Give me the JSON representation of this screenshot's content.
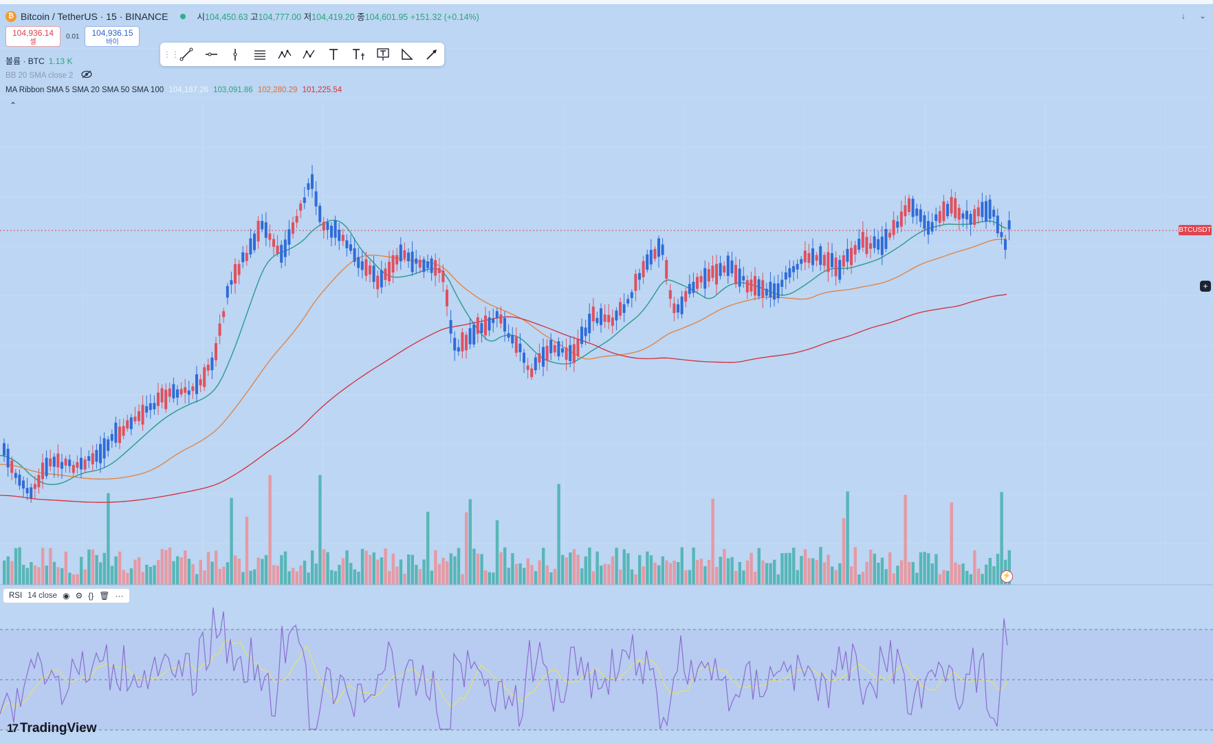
{
  "header": {
    "symbol": "Bitcoin / TetherUS · 15 · BINANCE",
    "open_label": "시",
    "open": "104,450.63",
    "high_label": "고",
    "high": "104,777.00",
    "low_label": "저",
    "low": "104,419.20",
    "close_label": "종",
    "close": "104,601.95",
    "change": "+151.32 (+0.14%)"
  },
  "trade": {
    "sell_price": "104,936.14",
    "sell_label": "셀",
    "spread": "0.01",
    "buy_price": "104,936.15",
    "buy_label": "바이"
  },
  "volume": {
    "label": "볼륨 · BTC",
    "value": "1.13 K"
  },
  "bb": {
    "label": "BB 20 SMA close 2"
  },
  "ma_ribbon": {
    "label": "MA Ribbon SMA 5 SMA 20 SMA 50 SMA 100",
    "v1": "104,187.26",
    "v2": "103,091.86",
    "v3": "102,280.29",
    "v4": "101,225.54"
  },
  "price_tag": "BTCUSDT",
  "rsi": {
    "label": "RSI",
    "params": "14 close"
  },
  "branding": {
    "logo_text": "TradingView"
  },
  "toolbar": {
    "tools": [
      "trend-line",
      "horizontal-ray",
      "vertical-line",
      "parallel-channel",
      "xabcd-pattern",
      "abcd-pattern",
      "text",
      "text-note",
      "anchored-text",
      "triangle",
      "arrow"
    ]
  },
  "colors": {
    "up": "#2f6bd8",
    "down": "#e0505e",
    "vol_up": "#58b6b7",
    "vol_down": "#e59aa4",
    "ma20": "#2a9a8c",
    "ma50": "#e67f3a",
    "ma100": "#d62c3a",
    "rsi": "#8a6fd0",
    "rsi_ma": "#e6e36a",
    "background": "#bcd6f3"
  }
}
